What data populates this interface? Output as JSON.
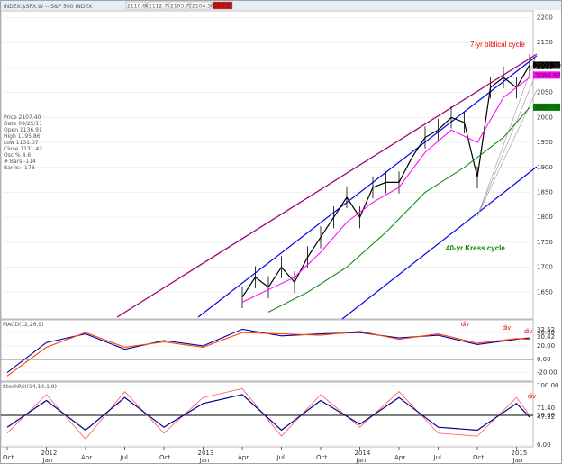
{
  "window": {
    "title": "INDEX:$SPX,W -- S&P 500 INDEX",
    "ohlc_strip": [
      "2110.60",
      "2112.74",
      "2103.75",
      "2104.50",
      "-11.84"
    ]
  },
  "info_panel": [
    "Price 2107.40",
    "Date 09/25/11",
    "Open 1136.91",
    "High 1195.86",
    "Low 1131.07",
    "Close 1131.42",
    "Osc % 4.6",
    "# Bars -114",
    "Bar is: -178"
  ],
  "colors": {
    "price": "#000000",
    "ema_fast": "#ff00ff",
    "ema_slow": "#008000",
    "channel": "#0000ee",
    "long_trend": "#a0007a",
    "macd": "#0000aa",
    "signal": "#ff4400",
    "stoch": "#ff5555",
    "stoch_smooth": "#000088",
    "annotation": "#ee0000",
    "annotation_green": "#008800"
  },
  "chart_data": [
    {
      "type": "line",
      "panel": "price",
      "x_range": [
        "2011-10",
        "2015-02"
      ],
      "ylim": [
        1600,
        2210
      ],
      "y_ticks": [
        1650,
        1700,
        1750,
        1800,
        1850,
        1900,
        1950,
        2000,
        2050,
        2100,
        2150,
        2200
      ],
      "x_labels": [
        "Oct",
        "2012\nJan",
        "Apr",
        "Jul",
        "Oct",
        "2013\nJan",
        "Apr",
        "Jul",
        "Oct",
        "2014\nJan",
        "Apr",
        "Jul",
        "Oct",
        "2015\nJan"
      ],
      "x_label_months": [
        "2011-10",
        "2012-01",
        "2012-04",
        "2012-07",
        "2012-10",
        "2013-01",
        "2013-04",
        "2013-07",
        "2013-10",
        "2014-01",
        "2014-04",
        "2014-07",
        "2014-10",
        "2015-01"
      ],
      "series": [
        {
          "role": "price",
          "x": [
            "2013-04",
            "2013-05",
            "2013-06",
            "2013-07",
            "2013-08",
            "2013-09",
            "2013-10",
            "2013-11",
            "2013-12",
            "2014-01",
            "2014-02",
            "2014-03",
            "2014-04",
            "2014-05",
            "2014-06",
            "2014-07",
            "2014-08",
            "2014-09",
            "2014-10",
            "2014-11",
            "2014-12",
            "2015-01",
            "2015-02"
          ],
          "values": [
            1640,
            1680,
            1660,
            1700,
            1670,
            1720,
            1760,
            1800,
            1840,
            1800,
            1860,
            1870,
            1870,
            1920,
            1960,
            1975,
            2000,
            1990,
            1880,
            2060,
            2080,
            2060,
            2105
          ]
        },
        {
          "role": "ema_fast",
          "x": [
            "2013-04",
            "2013-06",
            "2013-08",
            "2013-10",
            "2013-12",
            "2014-02",
            "2014-04",
            "2014-06",
            "2014-08",
            "2014-10",
            "2014-12",
            "2015-02"
          ],
          "values": [
            1630,
            1655,
            1680,
            1730,
            1790,
            1830,
            1860,
            1930,
            1975,
            1950,
            2040,
            2080
          ]
        },
        {
          "role": "ema_slow",
          "x": [
            "2013-06",
            "2013-09",
            "2013-12",
            "2014-03",
            "2014-06",
            "2014-09",
            "2014-12",
            "2015-02"
          ],
          "values": [
            1610,
            1650,
            1700,
            1770,
            1850,
            1900,
            1960,
            2020
          ]
        }
      ],
      "price_tags": [
        {
          "value": 2104.5,
          "label": "2104.50",
          "color": "#000000"
        },
        {
          "value": 2084.82,
          "label": "2084.82",
          "color": "#ff00ff"
        },
        {
          "value": 2020.71,
          "label": "2020.71",
          "color": "#008000"
        }
      ],
      "annotations": [
        {
          "text": "7-yr biblical cycle",
          "color": "#ee0000"
        },
        {
          "text": "40-yr Kress cycle",
          "color": "#008800"
        }
      ]
    },
    {
      "type": "line",
      "panel": "macd",
      "label": "MACD(12,26,9)",
      "ylim": [
        -30,
        55
      ],
      "y_ticks": [
        40,
        20,
        0,
        -20
      ],
      "y_tick_labels": [
        "40.00",
        "20.00",
        "0.00",
        "-20.00"
      ],
      "tags": [
        "32.52",
        "30.42"
      ],
      "x": [
        "2011-10",
        "2012-01",
        "2012-04",
        "2012-07",
        "2012-10",
        "2013-01",
        "2013-04",
        "2013-07",
        "2013-10",
        "2014-01",
        "2014-04",
        "2014-07",
        "2014-10",
        "2015-01",
        "2015-02"
      ],
      "series": [
        {
          "role": "macd",
          "values": [
            -20,
            25,
            38,
            15,
            28,
            20,
            45,
            35,
            38,
            40,
            32,
            36,
            22,
            30,
            32
          ]
        },
        {
          "role": "signal",
          "values": [
            -25,
            18,
            40,
            18,
            26,
            18,
            40,
            38,
            36,
            42,
            30,
            38,
            24,
            31,
            30
          ]
        }
      ],
      "annotations": [
        "div",
        "div",
        "div"
      ]
    },
    {
      "type": "line",
      "panel": "stoch_rsi",
      "label": "StochRSI(14,14,1,9)",
      "ylim": [
        0,
        100
      ],
      "y_ticks": [
        100,
        50,
        0
      ],
      "y_tick_labels": [
        "100.00",
        "50.00",
        "0.00"
      ],
      "tags": [
        "71.40",
        "47.32"
      ],
      "x": [
        "2011-10",
        "2012-01",
        "2012-04",
        "2012-07",
        "2012-10",
        "2013-01",
        "2013-04",
        "2013-07",
        "2013-10",
        "2014-01",
        "2014-04",
        "2014-07",
        "2014-10",
        "2015-01",
        "2015-02"
      ],
      "series": [
        {
          "role": "stoch",
          "values": [
            20,
            85,
            10,
            90,
            20,
            80,
            95,
            15,
            85,
            30,
            90,
            20,
            15,
            80,
            50
          ]
        },
        {
          "role": "stoch_smooth",
          "values": [
            30,
            75,
            25,
            80,
            30,
            70,
            85,
            25,
            75,
            35,
            80,
            30,
            25,
            70,
            47
          ]
        }
      ],
      "annotations": [
        "div"
      ]
    }
  ]
}
